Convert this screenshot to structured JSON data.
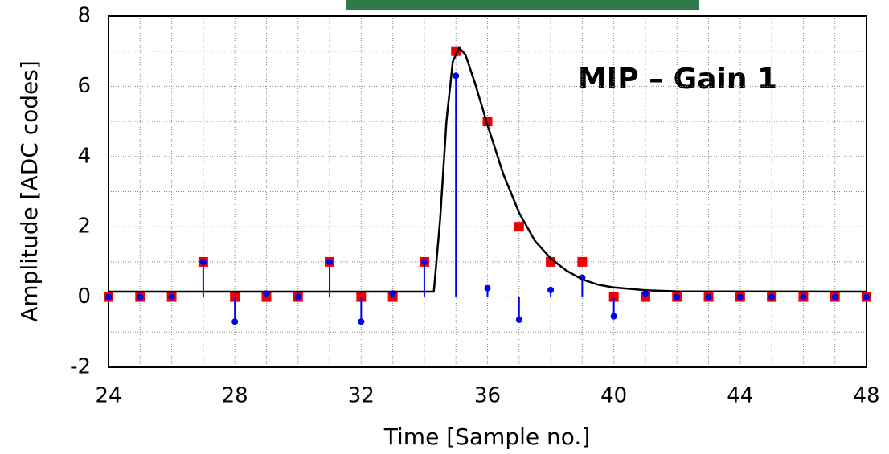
{
  "chart_data": {
    "type": "scatter",
    "annotation": "MIP – Gain 1",
    "x_label": "Time [Sample no.]",
    "y_label": "Amplitude [ADC codes]",
    "xlim": [
      24,
      48
    ],
    "ylim": [
      -2,
      8
    ],
    "xticks": [
      24,
      28,
      32,
      36,
      40,
      44,
      48
    ],
    "yticks": [
      -2,
      0,
      2,
      4,
      6,
      8
    ],
    "grid": true,
    "x": [
      24,
      25,
      26,
      27,
      28,
      29,
      30,
      31,
      32,
      33,
      34,
      35,
      36,
      37,
      38,
      39,
      40,
      41,
      42,
      43,
      44,
      45,
      46,
      47,
      48
    ],
    "series": [
      {
        "type": "square",
        "color": "#ee0000",
        "values": [
          0,
          0,
          0,
          1,
          0,
          0,
          0,
          1,
          0,
          0,
          1,
          7,
          5,
          2,
          1,
          1,
          0,
          0,
          0,
          0,
          0,
          0,
          0,
          0,
          0
        ]
      },
      {
        "type": "stem",
        "color": "#0000ee",
        "values": [
          0,
          0,
          0,
          1,
          -0.7,
          0.1,
          0,
          1,
          -0.7,
          0.1,
          1,
          6.3,
          0.25,
          -0.65,
          0.2,
          0.55,
          -0.55,
          0.1,
          0,
          0,
          0,
          0,
          0,
          0,
          0
        ]
      },
      {
        "type": "line",
        "color": "#000000",
        "x": [
          24,
          34.3,
          34.5,
          34.7,
          34.9,
          35.1,
          35.3,
          35.6,
          36,
          36.5,
          37,
          37.5,
          38,
          38.5,
          39,
          39.5,
          40,
          41,
          42,
          48
        ],
        "values": [
          0.15,
          0.15,
          2.2,
          5,
          6.7,
          7.1,
          6.9,
          6.1,
          4.9,
          3.5,
          2.4,
          1.6,
          1.1,
          0.75,
          0.5,
          0.35,
          0.27,
          0.19,
          0.16,
          0.15
        ]
      }
    ]
  }
}
